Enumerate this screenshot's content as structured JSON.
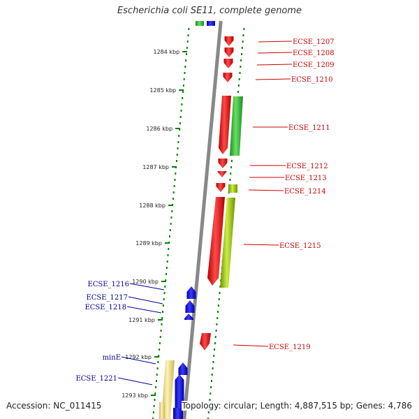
{
  "title": "Escherichia coli SE11, complete genome",
  "footer": {
    "accession": "Accession: NC_011415",
    "topology": "Topology: circular; Length: 4,887,515 bp; Genes: 4,786"
  },
  "colors": {
    "forward_gene": "#ff0000",
    "reverse_gene": "#0000ff",
    "green_feature": "#33cc33",
    "yellowgreen_feature": "#99cc00",
    "pale_feature": "#eedd88",
    "tick_green": "#008000",
    "backbone": "#888888",
    "label_red": "#cc0000",
    "label_blue": "#000099"
  },
  "scale_labels": [
    "1284 kbp",
    "1285 kbp",
    "1286 kbp",
    "1287 kbp",
    "1288 kbp",
    "1289 kbp",
    "1290 kbp",
    "1291 kbp",
    "1292 kbp",
    "1293 kbp"
  ],
  "forward_gene_labels": [
    "ECSE_1207",
    "ECSE_1208",
    "ECSE_1209",
    "ECSE_1210",
    "ECSE_1211",
    "ECSE_1212",
    "ECSE_1213",
    "ECSE_1214",
    "ECSE_1215",
    "ECSE_1219"
  ],
  "reverse_gene_labels": [
    "ECSE_1216",
    "ECSE_1217",
    "ECSE_1218",
    "minE",
    "ECSE_1221"
  ]
}
